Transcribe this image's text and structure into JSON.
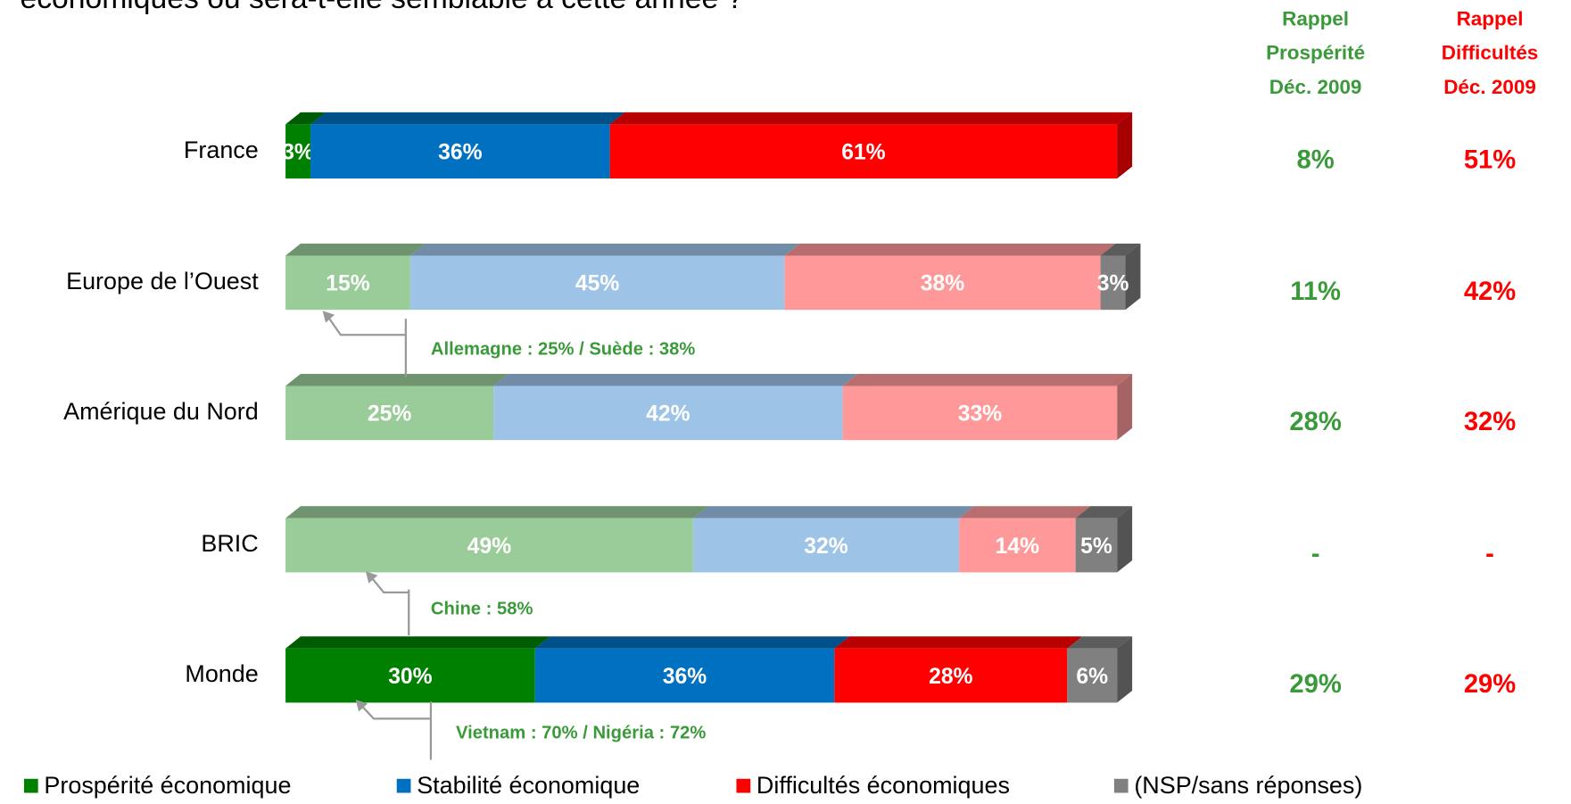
{
  "chart_data": {
    "type": "stacked_bar_3d",
    "orientation": "horizontal",
    "title": "économiques ou sera-t-elle semblable à cette année ?",
    "categories": [
      "France",
      "Europe de l’Ouest",
      "Amérique du Nord",
      "BRIC",
      "Monde"
    ],
    "emphasis": [
      true,
      false,
      false,
      false,
      true
    ],
    "xlim": [
      0,
      100
    ],
    "series": [
      {
        "name": "Prospérité économique",
        "color": "#008000",
        "light_color": "#99cc99",
        "values": [
          3,
          15,
          25,
          49,
          30
        ],
        "value_labels": [
          "3%",
          "15%",
          "25%",
          "49%",
          "30%"
        ]
      },
      {
        "name": "Stabilité économique",
        "color": "#0070c0",
        "light_color": "#9dc3e6",
        "values": [
          36,
          45,
          42,
          32,
          36
        ],
        "value_labels": [
          "36%",
          "45%",
          "42%",
          "32%",
          "36%"
        ]
      },
      {
        "name": "Difficultés économiques",
        "color": "#ff0000",
        "light_color": "#ff9999",
        "values": [
          61,
          38,
          33,
          14,
          28
        ],
        "value_labels": [
          "61%",
          "38%",
          "33%",
          "14%",
          "28%"
        ]
      },
      {
        "name": "(NSP/sans réponses)",
        "color": "#808080",
        "light_color": "#808080",
        "values": [
          null,
          3,
          null,
          5,
          6
        ],
        "value_labels": [
          null,
          "3%",
          null,
          "5%",
          "6%"
        ]
      }
    ],
    "legend": "bottom",
    "annotations": [
      {
        "category": 1,
        "text": "Allemagne : 25% / Suède : 38%"
      },
      {
        "category": 3,
        "text": "Chine : 58%"
      },
      {
        "category": 4,
        "text": "Vietnam : 70% / Nigéria : 72%"
      }
    ],
    "recall_columns": [
      {
        "header": [
          "Rappel",
          "Prospérité",
          "Déc. 2009"
        ],
        "color": "#3a9a3a",
        "cells": [
          "8%",
          "11%",
          "28%",
          "-",
          "29%"
        ]
      },
      {
        "header": [
          "Rappel",
          "Difficultés",
          "Déc. 2009"
        ],
        "color": "#ff0000",
        "cells": [
          "51%",
          "42%",
          "32%",
          "-",
          "29%"
        ]
      }
    ]
  }
}
